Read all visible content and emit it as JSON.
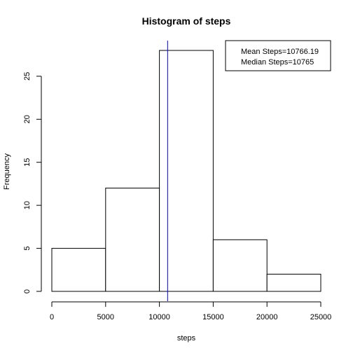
{
  "chart_data": {
    "type": "bar",
    "title": "Histogram of steps",
    "xlabel": "steps",
    "ylabel": "Frequency",
    "bins": [
      {
        "start": 0,
        "end": 5000,
        "count": 5
      },
      {
        "start": 5000,
        "end": 10000,
        "count": 12
      },
      {
        "start": 10000,
        "end": 15000,
        "count": 28
      },
      {
        "start": 15000,
        "end": 20000,
        "count": 6
      },
      {
        "start": 20000,
        "end": 25000,
        "count": 2
      }
    ],
    "xlim": [
      0,
      25000
    ],
    "ylim": [
      0,
      28
    ],
    "x_ticks": [
      0,
      5000,
      10000,
      15000,
      20000,
      25000
    ],
    "y_ticks": [
      0,
      5,
      10,
      15,
      20,
      25
    ],
    "mean_line": {
      "value": 10766.19,
      "color": "#0000ff"
    },
    "legend": {
      "position": "top-right",
      "entries": [
        "Mean Steps=10766.19",
        "Median Steps=10765"
      ]
    },
    "grid": false
  }
}
